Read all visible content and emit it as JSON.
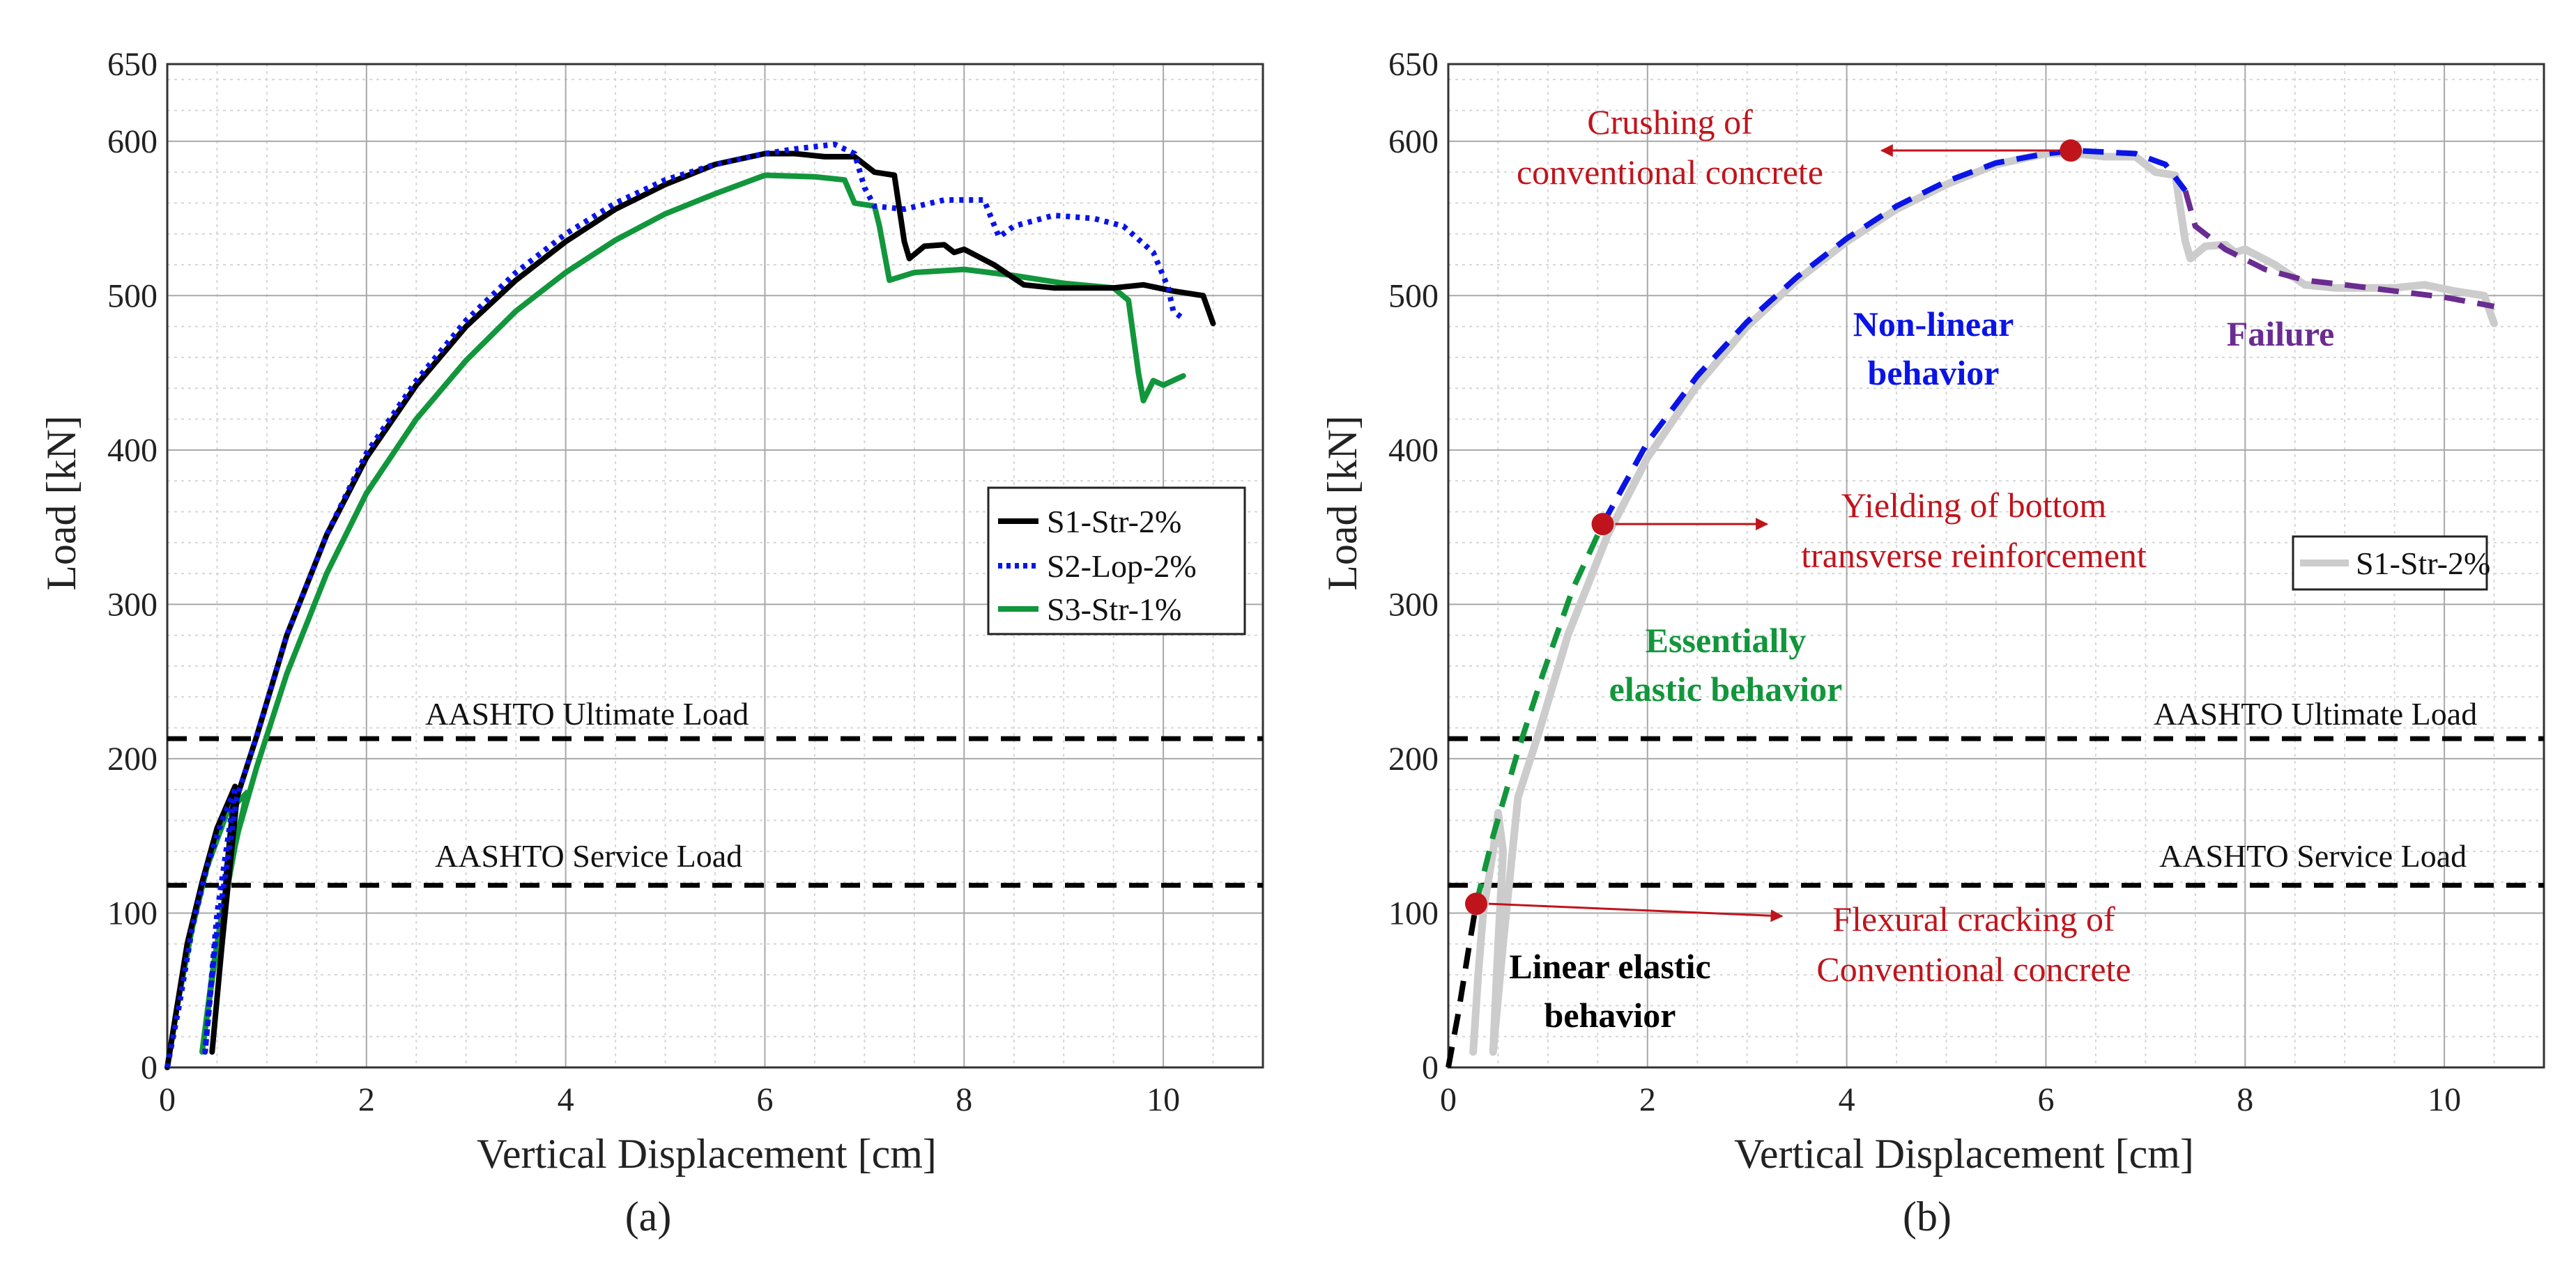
{
  "colors": {
    "s1": "#000000",
    "s2": "#0a14e6",
    "s3": "#12963c",
    "s1_light": "#cccccc",
    "annotation": "#c0141c",
    "linear": "#000000",
    "elastic": "#12963c",
    "nonlinear": "#0a14e6",
    "failure": "#6a2c91",
    "marker": "#c0141c",
    "ref_line": "#000000"
  },
  "chart_data": [
    {
      "panel": "(a)",
      "type": "line",
      "title": "",
      "caption": "(a)",
      "xlabel": "Vertical Displacement [cm]",
      "ylabel": "Load [kN]",
      "xlim": [
        0,
        11
      ],
      "ylim": [
        0,
        650
      ],
      "xticks": [
        "0",
        "2",
        "4",
        "6",
        "8",
        "10"
      ],
      "yticks": [
        "0",
        "100",
        "200",
        "300",
        "400",
        "500",
        "600",
        "650"
      ],
      "grid": true,
      "legend_position": "right",
      "legend": [
        "S1-Str-2%",
        "S2-Lop-2%",
        "S3-Str-1%"
      ],
      "reference_lines": [
        {
          "label": "AASHTO Ultimate Load",
          "y": 213
        },
        {
          "label": "AASHTO Service Load",
          "y": 118
        }
      ],
      "series": [
        {
          "name": "S1-Str-2%",
          "style": "solid",
          "color_key": "s1",
          "segments": [
            [
              [
                0,
                0
              ],
              [
                0.1,
                40
              ],
              [
                0.2,
                80
              ],
              [
                0.35,
                120
              ],
              [
                0.5,
                155
              ],
              [
                0.68,
                182
              ]
            ],
            [
              [
                0.68,
                182
              ],
              [
                0.6,
                130
              ],
              [
                0.55,
                80
              ],
              [
                0.45,
                10
              ],
              [
                0.55,
                80
              ],
              [
                0.7,
                175
              ],
              [
                0.9,
                215
              ],
              [
                1.2,
                280
              ],
              [
                1.6,
                345
              ],
              [
                2,
                395
              ],
              [
                2.5,
                442
              ],
              [
                3,
                480
              ],
              [
                3.5,
                510
              ],
              [
                4,
                535
              ],
              [
                4.5,
                556
              ],
              [
                5,
                572
              ],
              [
                5.5,
                585
              ],
              [
                6,
                592
              ],
              [
                6.3,
                592
              ],
              [
                6.6,
                590
              ],
              [
                6.9,
                590
              ],
              [
                7.1,
                580
              ],
              [
                7.3,
                578
              ],
              [
                7.4,
                535
              ],
              [
                7.45,
                524
              ],
              [
                7.6,
                532
              ],
              [
                7.8,
                533
              ],
              [
                7.9,
                528
              ],
              [
                8,
                530
              ],
              [
                8.3,
                520
              ],
              [
                8.6,
                507
              ],
              [
                8.9,
                505
              ],
              [
                9.5,
                505
              ],
              [
                9.8,
                507
              ],
              [
                10.1,
                503
              ],
              [
                10.4,
                500
              ],
              [
                10.5,
                482
              ]
            ]
          ]
        },
        {
          "name": "S2-Lop-2%",
          "style": "dotted",
          "color_key": "s2",
          "segments": [
            [
              [
                0,
                0
              ],
              [
                0.12,
                40
              ],
              [
                0.25,
                90
              ],
              [
                0.4,
                130
              ],
              [
                0.55,
                160
              ],
              [
                0.68,
                180
              ]
            ],
            [
              [
                0.68,
                180
              ],
              [
                0.5,
                100
              ],
              [
                0.38,
                10
              ],
              [
                0.48,
                80
              ],
              [
                0.7,
                175
              ],
              [
                0.9,
                215
              ],
              [
                1.2,
                280
              ],
              [
                1.6,
                345
              ],
              [
                2,
                398
              ],
              [
                2.5,
                445
              ],
              [
                3,
                484
              ],
              [
                3.5,
                515
              ],
              [
                4,
                540
              ],
              [
                4.5,
                560
              ],
              [
                5,
                575
              ],
              [
                5.5,
                585
              ],
              [
                6,
                592
              ],
              [
                6.3,
                595
              ],
              [
                6.7,
                598
              ],
              [
                6.9,
                592
              ],
              [
                7,
                570
              ],
              [
                7.1,
                558
              ],
              [
                7.4,
                556
              ],
              [
                7.8,
                562
              ],
              [
                8.2,
                562
              ],
              [
                8.35,
                538
              ],
              [
                8.5,
                545
              ],
              [
                8.9,
                552
              ],
              [
                9.3,
                550
              ],
              [
                9.6,
                545
              ],
              [
                9.9,
                528
              ],
              [
                10.05,
                505
              ],
              [
                10.1,
                490
              ],
              [
                10.2,
                485
              ]
            ]
          ]
        },
        {
          "name": "S3-Str-1%",
          "style": "solid",
          "color_key": "s3",
          "segments": [
            [
              [
                0,
                0
              ],
              [
                0.1,
                40
              ],
              [
                0.25,
                90
              ],
              [
                0.4,
                130
              ],
              [
                0.6,
                165
              ],
              [
                0.8,
                178
              ]
            ],
            [
              [
                0.8,
                178
              ],
              [
                0.6,
                120
              ],
              [
                0.45,
                60
              ],
              [
                0.35,
                10
              ],
              [
                0.5,
                80
              ],
              [
                0.7,
                150
              ],
              [
                0.9,
                195
              ],
              [
                1.2,
                255
              ],
              [
                1.6,
                320
              ],
              [
                2,
                372
              ],
              [
                2.5,
                420
              ],
              [
                3,
                458
              ],
              [
                3.5,
                490
              ],
              [
                4,
                515
              ],
              [
                4.5,
                536
              ],
              [
                5,
                553
              ],
              [
                5.5,
                566
              ],
              [
                6,
                578
              ],
              [
                6.5,
                577
              ],
              [
                6.8,
                575
              ],
              [
                6.9,
                560
              ],
              [
                7.1,
                558
              ],
              [
                7.15,
                545
              ],
              [
                7.25,
                510
              ],
              [
                7.5,
                515
              ],
              [
                8,
                517
              ],
              [
                8.5,
                513
              ],
              [
                9,
                508
              ],
              [
                9.5,
                505
              ],
              [
                9.65,
                497
              ],
              [
                9.75,
                450
              ],
              [
                9.8,
                432
              ],
              [
                9.9,
                445
              ],
              [
                10,
                442
              ],
              [
                10.2,
                448
              ]
            ]
          ]
        }
      ]
    },
    {
      "panel": "(b)",
      "type": "line",
      "title": "",
      "caption": "(b)",
      "xlabel": "Vertical Displacement [cm]",
      "ylabel": "Load [kN]",
      "xlim": [
        0,
        11
      ],
      "ylim": [
        0,
        650
      ],
      "xticks": [
        "0",
        "2",
        "4",
        "6",
        "8",
        "10"
      ],
      "yticks": [
        "0",
        "100",
        "200",
        "300",
        "400",
        "500",
        "600",
        "650"
      ],
      "grid": true,
      "legend_position": "right",
      "legend": [
        "S1-Str-2%"
      ],
      "reference_lines": [
        {
          "label": "AASHTO Ultimate Load",
          "y": 213
        },
        {
          "label": "AASHTO Service Load",
          "y": 118
        }
      ],
      "base_series": {
        "name": "S1-Str-2%",
        "color_key": "s1_light",
        "points": [
          [
            0.25,
            10
          ],
          [
            0.3,
            60
          ],
          [
            0.35,
            100
          ],
          [
            0.45,
            140
          ],
          [
            0.5,
            165
          ],
          [
            0.55,
            140
          ],
          [
            0.5,
            80
          ],
          [
            0.45,
            10
          ],
          [
            0.55,
            80
          ],
          [
            0.7,
            175
          ],
          [
            0.9,
            215
          ],
          [
            1.2,
            280
          ],
          [
            1.6,
            345
          ],
          [
            2,
            395
          ],
          [
            2.5,
            442
          ],
          [
            3,
            480
          ],
          [
            3.5,
            510
          ],
          [
            4,
            535
          ],
          [
            4.5,
            556
          ],
          [
            5,
            572
          ],
          [
            5.5,
            585
          ],
          [
            6,
            592
          ],
          [
            6.3,
            592
          ],
          [
            6.6,
            590
          ],
          [
            6.9,
            590
          ],
          [
            7.1,
            580
          ],
          [
            7.3,
            578
          ],
          [
            7.4,
            535
          ],
          [
            7.45,
            524
          ],
          [
            7.6,
            532
          ],
          [
            7.8,
            533
          ],
          [
            7.9,
            528
          ],
          [
            8,
            530
          ],
          [
            8.3,
            520
          ],
          [
            8.6,
            507
          ],
          [
            8.9,
            505
          ],
          [
            9.5,
            505
          ],
          [
            9.8,
            507
          ],
          [
            10.1,
            503
          ],
          [
            10.4,
            500
          ],
          [
            10.5,
            482
          ]
        ]
      },
      "phases": [
        {
          "name": "Linear elastic behavior",
          "color_key": "linear",
          "points": [
            [
              0,
              0
            ],
            [
              0.1,
              35
            ],
            [
              0.2,
              75
            ],
            [
              0.28,
              106
            ]
          ]
        },
        {
          "name": "Essentially elastic behavior",
          "color_key": "elastic",
          "points": [
            [
              0.28,
              106
            ],
            [
              0.45,
              150
            ],
            [
              0.7,
              205
            ],
            [
              0.95,
              255
            ],
            [
              1.25,
              310
            ],
            [
              1.55,
              352
            ]
          ]
        },
        {
          "name": "Non-linear behavior",
          "color_key": "nonlinear",
          "points": [
            [
              1.55,
              352
            ],
            [
              2,
              405
            ],
            [
              2.5,
              448
            ],
            [
              3,
              483
            ],
            [
              3.5,
              512
            ],
            [
              4,
              537
            ],
            [
              4.5,
              558
            ],
            [
              5,
              574
            ],
            [
              5.5,
              586
            ],
            [
              6,
              592
            ],
            [
              6.3,
              594
            ],
            [
              6.9,
              592
            ],
            [
              7.2,
              585
            ],
            [
              7.4,
              568
            ]
          ]
        },
        {
          "name": "Failure",
          "color_key": "failure",
          "points": [
            [
              7.4,
              568
            ],
            [
              7.5,
              545
            ],
            [
              7.8,
              530
            ],
            [
              8.2,
              517
            ],
            [
              8.6,
              510
            ],
            [
              9,
              507
            ],
            [
              9.5,
              503
            ],
            [
              10,
              499
            ],
            [
              10.5,
              493
            ]
          ]
        }
      ],
      "key_points": [
        {
          "name": "Flexural cracking of Conventional concrete",
          "x": 0.28,
          "y": 106
        },
        {
          "name": "Yielding of bottom transverse reinforcement",
          "x": 1.55,
          "y": 352
        },
        {
          "name": "Crushing of conventional concrete",
          "x": 6.25,
          "y": 594
        }
      ]
    }
  ],
  "labels": {
    "ultimate": "AASHTO Ultimate Load",
    "service": "AASHTO Service Load",
    "caption_a": "(a)",
    "caption_b": "(b)",
    "crushing_1": "Crushing of",
    "crushing_2": "conventional concrete",
    "yielding_1": "Yielding of bottom",
    "yielding_2": "transverse reinforcement",
    "cracking_1": "Flexural cracking of",
    "cracking_2": "Conventional concrete",
    "nonlinear_1": "Non-linear",
    "nonlinear_2": "behavior",
    "elastic_1": "Essentially",
    "elastic_2": "elastic behavior",
    "linear_1": "Linear elastic",
    "linear_2": "behavior",
    "failure": "Failure"
  }
}
